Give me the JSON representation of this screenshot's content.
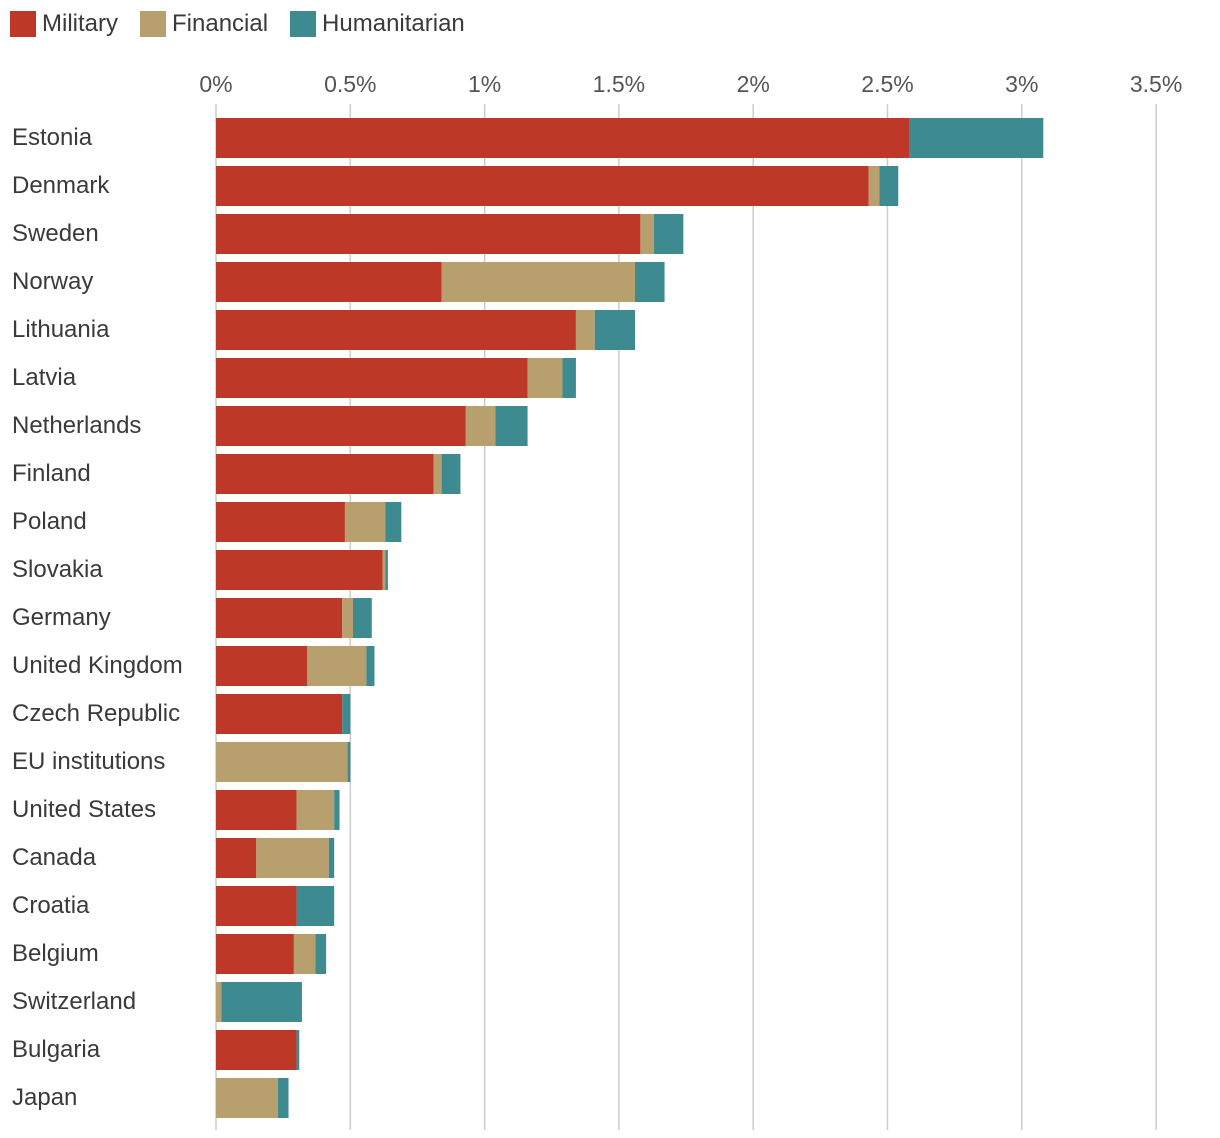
{
  "colors": {
    "Military": "#bd3826",
    "Financial": "#b8a06e",
    "Humanitarian": "#3d8b91",
    "grid": "#cccccc"
  },
  "chart_data": {
    "type": "bar",
    "orientation": "horizontal",
    "stacked": true,
    "legend": [
      "Military",
      "Financial",
      "Humanitarian"
    ],
    "legend_placement": "top-left",
    "grid": true,
    "xlim": [
      0,
      3.5
    ],
    "ticks": [
      0,
      0.5,
      1,
      1.5,
      2,
      2.5,
      3,
      3.5
    ],
    "tick_labels": [
      "0%",
      "0.5%",
      "1%",
      "1.5%",
      "2%",
      "2.5%",
      "3%",
      "3.5%"
    ],
    "categories": [
      "Estonia",
      "Denmark",
      "Sweden",
      "Norway",
      "Lithuania",
      "Latvia",
      "Netherlands",
      "Finland",
      "Poland",
      "Slovakia",
      "Germany",
      "United Kingdom",
      "Czech Republic",
      "EU institutions",
      "United States",
      "Canada",
      "Croatia",
      "Belgium",
      "Switzerland",
      "Bulgaria",
      "Japan"
    ],
    "series": [
      {
        "name": "Military",
        "values": [
          2.58,
          2.43,
          1.58,
          0.84,
          1.34,
          1.16,
          0.93,
          0.81,
          0.48,
          0.62,
          0.47,
          0.34,
          0.47,
          0.0,
          0.3,
          0.15,
          0.3,
          0.29,
          0.0,
          0.3,
          0.0
        ]
      },
      {
        "name": "Financial",
        "values": [
          0.0,
          0.04,
          0.05,
          0.72,
          0.07,
          0.13,
          0.11,
          0.03,
          0.15,
          0.01,
          0.04,
          0.22,
          0.0,
          0.49,
          0.14,
          0.27,
          0.0,
          0.08,
          0.02,
          0.0,
          0.23
        ]
      },
      {
        "name": "Humanitarian",
        "values": [
          0.5,
          0.07,
          0.11,
          0.11,
          0.15,
          0.05,
          0.12,
          0.07,
          0.06,
          0.01,
          0.07,
          0.03,
          0.03,
          0.01,
          0.02,
          0.02,
          0.14,
          0.04,
          0.3,
          0.01,
          0.04
        ]
      }
    ]
  }
}
